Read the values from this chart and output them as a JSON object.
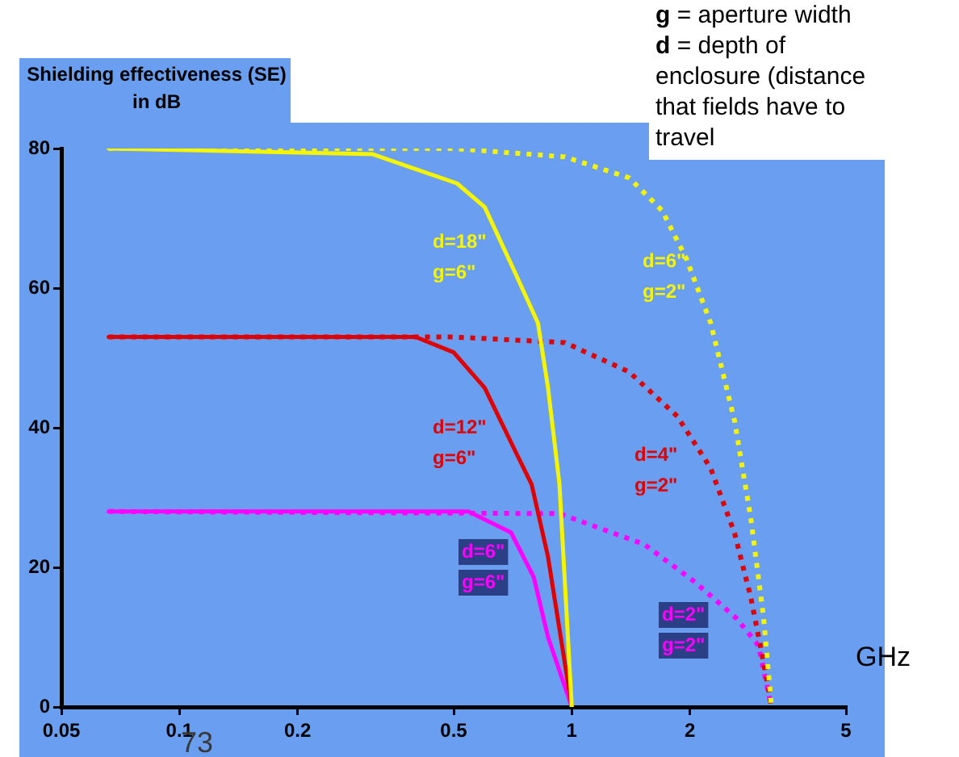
{
  "chart_data": {
    "type": "line",
    "ylabel": "Shielding effectiveness (SE) in dB",
    "xlabel": "GHz",
    "log": "x",
    "xlim": [
      0.05,
      5
    ],
    "xticks": [
      0.05,
      0.1,
      0.2,
      0.5,
      1,
      2,
      5
    ],
    "ylim": [
      0,
      80
    ],
    "yticks": [
      0,
      20,
      40,
      60,
      80
    ],
    "grid": false,
    "legend": false,
    "marker": "none",
    "annotations": [
      "g = aperture width",
      "d = depth of enclosure (distance that fields have to travel",
      "73"
    ],
    "series": [
      {
        "name": "d=18\"\ng=6\"",
        "color": "#f5f500",
        "line_style": "solid",
        "x": [
          0.066,
          0.31,
          0.51,
          0.6,
          0.72,
          0.82,
          0.87,
          0.93,
          1
        ],
        "values": [
          80,
          79.2,
          75,
          71.6,
          62,
          55,
          45.7,
          32,
          0
        ]
      },
      {
        "name": "d=6\"\ng=2\"",
        "color": "#f5f500",
        "line_style": "dotted",
        "x": [
          0.066,
          0.5,
          0.96,
          1.4,
          1.7,
          1.96,
          2.26,
          2.6,
          2.86,
          3.08,
          3.23
        ],
        "values": [
          80,
          80,
          78.8,
          75.8,
          71.1,
          64.2,
          55,
          41,
          27,
          13,
          0
        ]
      },
      {
        "name": "d=12\"\ng=6\"",
        "color": "#e00000",
        "line_style": "solid",
        "x": [
          0.066,
          0.4,
          0.5,
          0.6,
          0.72,
          0.79,
          0.87,
          1
        ],
        "values": [
          53,
          53,
          50.8,
          45.7,
          36.5,
          31.9,
          21.5,
          0
        ]
      },
      {
        "name": "d=4\"\ng=2\"",
        "color": "#e00000",
        "line_style": "dotted",
        "x": [
          0.066,
          0.5,
          0.96,
          1.4,
          1.86,
          2.26,
          2.6,
          2.86,
          3.08,
          3.23
        ],
        "values": [
          53,
          53,
          52.2,
          48,
          41.6,
          34.2,
          24.9,
          15.7,
          6.5,
          0
        ]
      },
      {
        "name": "d=6\"\ng=6\"",
        "color": "#ff00ff",
        "line_style": "solid",
        "x": [
          0.066,
          0.545,
          0.7,
          0.8,
          0.87,
          1
        ],
        "values": [
          28,
          28,
          25,
          18.6,
          10,
          0
        ]
      },
      {
        "name": "d=2\"\ng=2\"",
        "color": "#ff00ff",
        "line_style": "dotted",
        "x": [
          0.066,
          0.93,
          1.53,
          2.05,
          2.63,
          2.99,
          3.23
        ],
        "values": [
          28,
          27.7,
          23.3,
          18,
          12.7,
          8.8,
          0
        ]
      }
    ]
  }
}
